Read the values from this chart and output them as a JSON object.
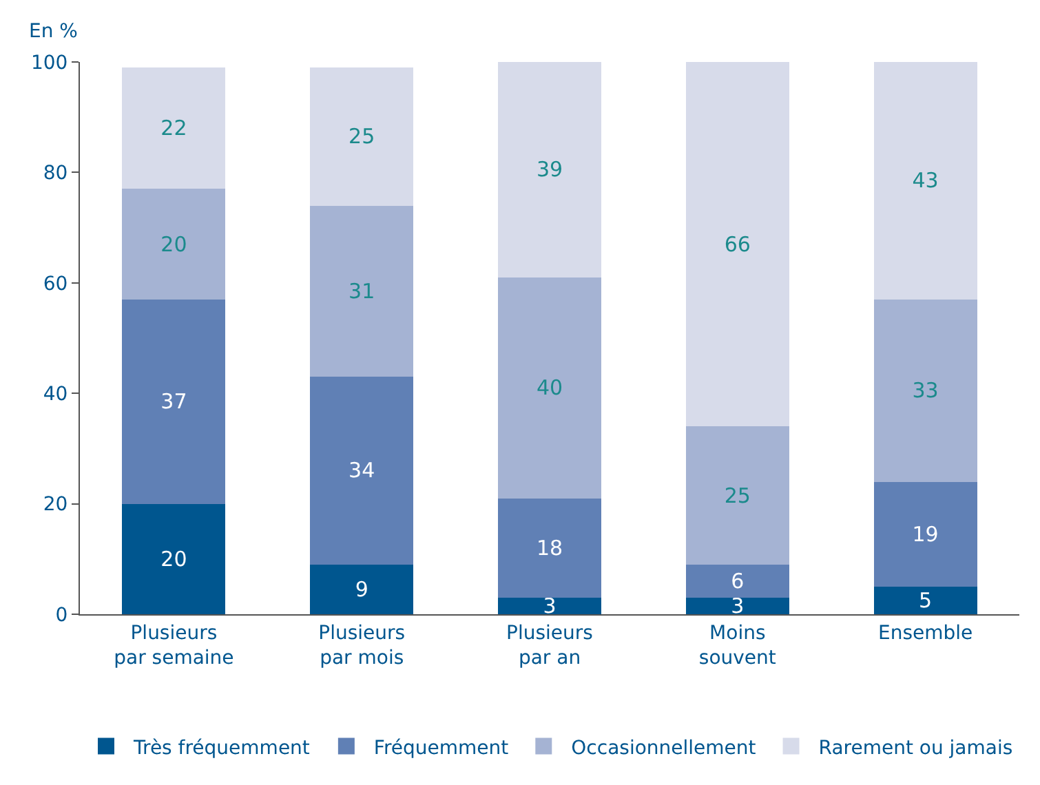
{
  "chart_data": {
    "type": "bar",
    "stacked": true,
    "ylabel": "En %",
    "categories": [
      "Plusieurs\npar semaine",
      "Plusieurs\npar mois",
      "Plusieurs\npar an",
      "Moins\nsouvent",
      "Ensemble"
    ],
    "series": [
      {
        "name": "Très fréquemment",
        "color": "#00568f",
        "values": [
          20,
          9,
          3,
          3,
          5
        ]
      },
      {
        "name": "Fréquemment",
        "color": "#6080b5",
        "values": [
          37,
          34,
          18,
          6,
          19
        ]
      },
      {
        "name": "Occasionnellement",
        "color": "#a5b3d3",
        "values": [
          20,
          31,
          40,
          25,
          33
        ]
      },
      {
        "name": "Rarement ou jamais",
        "color": "#d7dbea",
        "values": [
          22,
          25,
          39,
          66,
          43
        ]
      }
    ],
    "ylim": [
      0,
      100
    ],
    "yticks": [
      0,
      20,
      40,
      60,
      80,
      100
    ],
    "grid": false,
    "legend": "bottom",
    "data_labels": true
  }
}
